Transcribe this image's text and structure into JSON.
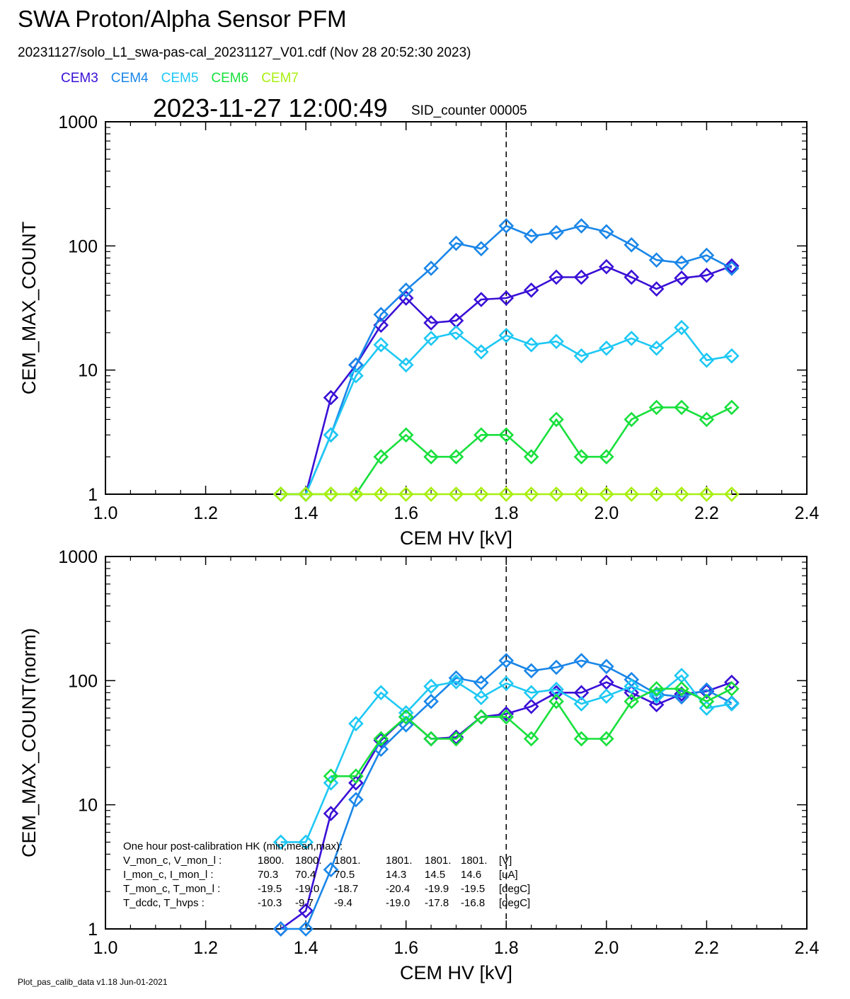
{
  "title": "SWA Proton/Alpha Sensor PFM",
  "subtitle": "20231127/solo_L1_swa-pas-cal_20231127_V01.cdf  (Nov 28 20:52:30 2023)",
  "legend": [
    {
      "name": "CEM3",
      "color": "#3a10d6"
    },
    {
      "name": "CEM4",
      "color": "#1a86e8"
    },
    {
      "name": "CEM5",
      "color": "#1ec8f4"
    },
    {
      "name": "CEM6",
      "color": "#18e03c"
    },
    {
      "name": "CEM7",
      "color": "#a8f010"
    }
  ],
  "timestamp": "2023-11-27 12:00:49",
  "sid_label": "SID_counter 00005",
  "footer": "Plot_pas_calib_data v1.18 Jun-01-2021",
  "hk_block": {
    "header": "One hour post-calibration HK (min,mean,max):",
    "rows": [
      [
        "V_mon_c, V_mon_l :",
        "1800.",
        "1800.",
        "1801.",
        "1801.",
        "1801.",
        "1801.",
        "[V]"
      ],
      [
        "I_mon_c,  I_mon_l :",
        "70.3",
        "70.4",
        "70.5",
        "14.3",
        "14.5",
        "14.6",
        "[uA]"
      ],
      [
        "T_mon_c, T_mon_l :",
        "-19.5",
        "-19.0",
        "-18.7",
        "-20.4",
        "-19.9",
        "-19.5",
        "[degC]"
      ],
      [
        "T_dcdc,    T_hvps :",
        "-10.3",
        "-9.7",
        "-9.4",
        "-19.0",
        "-17.8",
        "-16.8",
        "[degC]"
      ]
    ]
  },
  "chart_data": [
    {
      "type": "line",
      "xlabel": "CEM HV [kV]",
      "ylabel": "CEM_MAX_COUNT",
      "xlim": [
        1.0,
        2.4
      ],
      "ylim": [
        1,
        1000
      ],
      "yscale": "log",
      "xticks": [
        "1.0",
        "1.2",
        "1.4",
        "1.6",
        "1.8",
        "2.0",
        "2.2",
        "2.4"
      ],
      "yticks": [
        "1",
        "10",
        "100",
        "1000"
      ],
      "vline_x": 1.8,
      "marker": "diamond",
      "x": [
        1.35,
        1.4,
        1.45,
        1.5,
        1.55,
        1.6,
        1.65,
        1.7,
        1.75,
        1.8,
        1.85,
        1.9,
        1.95,
        2.0,
        2.05,
        2.1,
        2.15,
        2.2,
        2.25
      ],
      "series": [
        {
          "name": "CEM3",
          "values": [
            1,
            1,
            6,
            11,
            23,
            38,
            24,
            25,
            37,
            38,
            44,
            56,
            56,
            68,
            56,
            45,
            55,
            58,
            69
          ]
        },
        {
          "name": "CEM4",
          "values": [
            1,
            1,
            3,
            11,
            28,
            44,
            66,
            105,
            95,
            145,
            120,
            128,
            145,
            130,
            102,
            77,
            73,
            84,
            66
          ]
        },
        {
          "name": "CEM5",
          "values": [
            1,
            1,
            3,
            9,
            16,
            11,
            18,
            20,
            14,
            19,
            16,
            17,
            13,
            15,
            18,
            15,
            22,
            12,
            13
          ]
        },
        {
          "name": "CEM6",
          "values": [
            1,
            1,
            1,
            1,
            2,
            3,
            2,
            2,
            3,
            3,
            2,
            4,
            2,
            2,
            4,
            5,
            5,
            4,
            5
          ]
        },
        {
          "name": "CEM7",
          "values": [
            1,
            1,
            1,
            1,
            1,
            1,
            1,
            1,
            1,
            1,
            1,
            1,
            1,
            1,
            1,
            1,
            1,
            1,
            1
          ]
        }
      ]
    },
    {
      "type": "line",
      "xlabel": "CEM HV [kV]",
      "ylabel": "CEM_MAX_COUNT(norm)",
      "xlim": [
        1.0,
        2.4
      ],
      "ylim": [
        1,
        1000
      ],
      "yscale": "log",
      "xticks": [
        "1.0",
        "1.2",
        "1.4",
        "1.6",
        "1.8",
        "2.0",
        "2.2",
        "2.4"
      ],
      "yticks": [
        "1",
        "10",
        "100",
        "1000"
      ],
      "vline_x": 1.8,
      "marker": "diamond",
      "x": [
        1.35,
        1.4,
        1.45,
        1.5,
        1.55,
        1.6,
        1.65,
        1.7,
        1.75,
        1.8,
        1.85,
        1.9,
        1.95,
        2.0,
        2.05,
        2.1,
        2.15,
        2.2,
        2.25
      ],
      "series": [
        {
          "name": "CEM3",
          "values": [
            1,
            1.4,
            8.5,
            15,
            33,
            51,
            34,
            35,
            51,
            54,
            62,
            80,
            80,
            97,
            80,
            64,
            78,
            82,
            97
          ]
        },
        {
          "name": "CEM4",
          "values": [
            1,
            1,
            3,
            11,
            28,
            44,
            68,
            105,
            96,
            145,
            120,
            128,
            145,
            130,
            102,
            78,
            74,
            84,
            66
          ]
        },
        {
          "name": "CEM5",
          "values": [
            5,
            5,
            15,
            45,
            80,
            55,
            90,
            98,
            73,
            95,
            80,
            85,
            65,
            75,
            90,
            75,
            110,
            60,
            65
          ]
        },
        {
          "name": "CEM6",
          "values": [
            null,
            null,
            17,
            17,
            34,
            51,
            34,
            34,
            51,
            51,
            34,
            68,
            34,
            34,
            68,
            86,
            86,
            68,
            86
          ]
        }
      ]
    }
  ]
}
